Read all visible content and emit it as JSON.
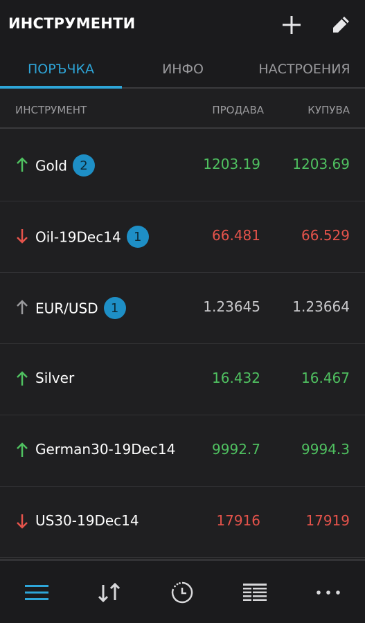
{
  "header": {
    "title": "ИНСТРУМЕНТИ",
    "add_icon": "plus-icon",
    "edit_icon": "pencil-icon"
  },
  "tabs": [
    {
      "label": "ПОРЪЧКА",
      "active": true
    },
    {
      "label": "ИНФО",
      "active": false
    },
    {
      "label": "НАСТРОЕНИЯ",
      "active": false
    }
  ],
  "columns": {
    "instrument": "ИНСТРУМЕНТ",
    "sell": "ПРОДАВА",
    "buy": "КУПУВА"
  },
  "colors": {
    "accent": "#2ea6d9",
    "up": "#4fc060",
    "down": "#e5534b",
    "neutral": "#c8c8cb"
  },
  "instruments": [
    {
      "name": "Gold",
      "badge": "2",
      "direction": "up",
      "sell": "1203.19",
      "buy": "1203.69"
    },
    {
      "name": "Oil-19Dec14",
      "badge": "1",
      "direction": "down",
      "sell": "66.481",
      "buy": "66.529"
    },
    {
      "name": "EUR/USD",
      "badge": "1",
      "direction": "neutral",
      "sell": "1.23645",
      "buy": "1.23664"
    },
    {
      "name": "Silver",
      "badge": "",
      "direction": "up",
      "sell": "16.432",
      "buy": "16.467"
    },
    {
      "name": "German30-19Dec14",
      "badge": "",
      "direction": "up",
      "sell": "9992.7",
      "buy": "9994.3"
    },
    {
      "name": "US30-19Dec14",
      "badge": "",
      "direction": "down",
      "sell": "17916",
      "buy": "17919"
    }
  ],
  "bottom_nav": [
    {
      "icon": "menu-lines-icon",
      "active": true
    },
    {
      "icon": "sort-arrows-icon",
      "active": false
    },
    {
      "icon": "clock-icon",
      "active": false
    },
    {
      "icon": "table-icon",
      "active": false
    },
    {
      "icon": "more-dots-icon",
      "active": false
    }
  ]
}
